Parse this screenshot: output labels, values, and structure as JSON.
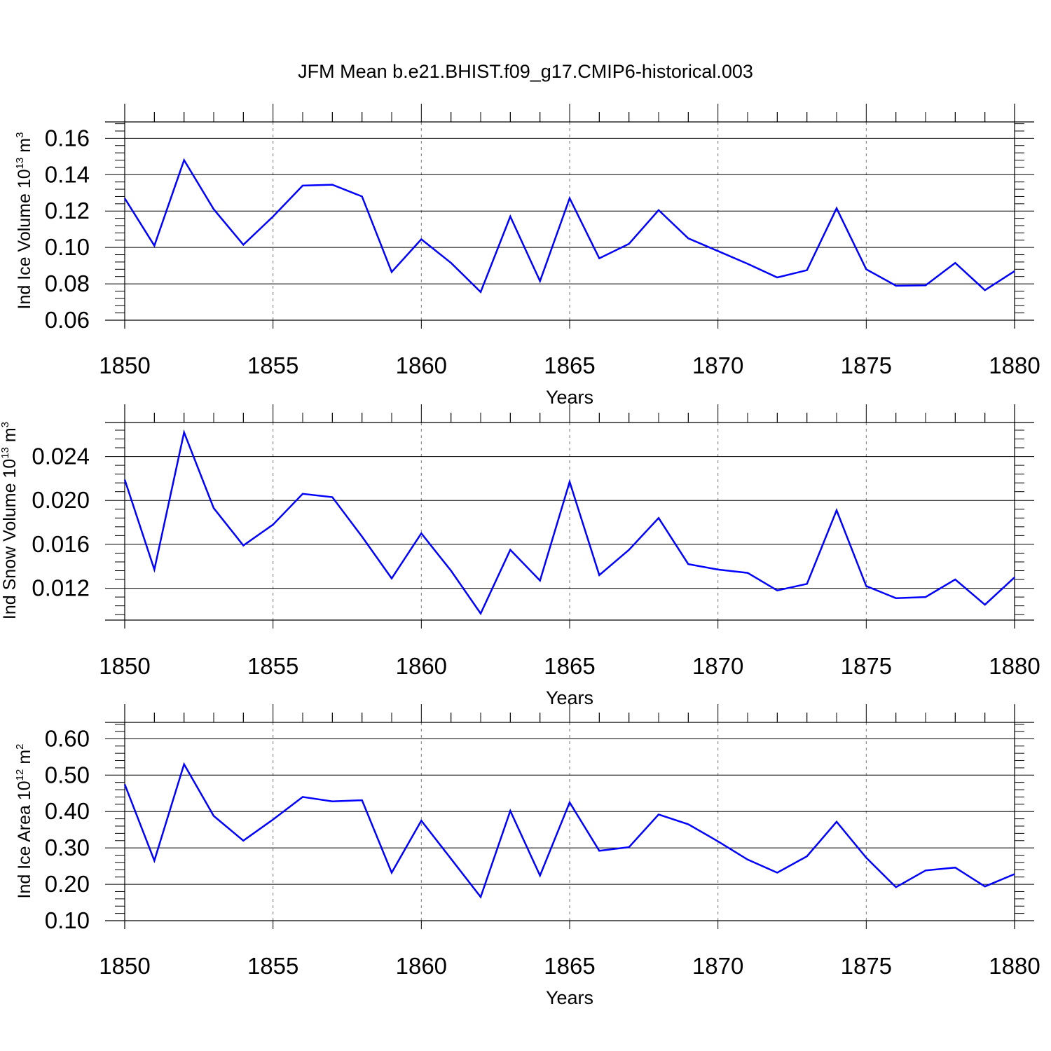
{
  "title": "JFM Mean b.e21.BHIST.f09_g17.CMIP6-historical.003",
  "line_color": "#0000ff",
  "chart_data": [
    {
      "type": "line",
      "ylabel_main": "Ind Ice Volume 10",
      "ylabel_exp": "13",
      "ylabel_unit": "m",
      "ylabel_unit_exp": "3",
      "xlabel": "Years",
      "xlim": [
        1850,
        1880
      ],
      "ylim": [
        0.06,
        0.169
      ],
      "x_ticks": [
        "1850",
        "1855",
        "1860",
        "1865",
        "1870",
        "1875",
        "1880"
      ],
      "y_ticks": [
        "0.06",
        "0.08",
        "0.10",
        "0.12",
        "0.14",
        "0.16"
      ],
      "y_tick_values": [
        0.06,
        0.08,
        0.1,
        0.12,
        0.14,
        0.16
      ],
      "grid": "dashed vertical at major x ticks",
      "x": [
        1850,
        1851,
        1852,
        1853,
        1854,
        1855,
        1856,
        1857,
        1858,
        1859,
        1860,
        1861,
        1862,
        1863,
        1864,
        1865,
        1866,
        1867,
        1868,
        1869,
        1870,
        1871,
        1872,
        1873,
        1874,
        1875,
        1876,
        1877,
        1878,
        1879,
        1880
      ],
      "values": [
        0.127,
        0.101,
        0.148,
        0.121,
        0.1015,
        0.117,
        0.134,
        0.1345,
        0.128,
        0.0865,
        0.1045,
        0.0915,
        0.0755,
        0.117,
        0.0815,
        0.127,
        0.094,
        0.102,
        0.1205,
        0.105,
        0.098,
        0.091,
        0.0835,
        0.0875,
        0.1215,
        0.088,
        0.079,
        0.0792,
        0.0915,
        0.0765,
        0.087
      ]
    },
    {
      "type": "line",
      "ylabel_main": "Ind Snow Volume 10",
      "ylabel_exp": "13",
      "ylabel_unit": "m",
      "ylabel_unit_exp": "3",
      "xlabel": "Years",
      "xlim": [
        1850,
        1880
      ],
      "ylim": [
        0.0091,
        0.0271
      ],
      "x_ticks": [
        "1850",
        "1855",
        "1860",
        "1865",
        "1870",
        "1875",
        "1880"
      ],
      "y_ticks": [
        "0.012",
        "0.016",
        "0.020",
        "0.024"
      ],
      "y_tick_values": [
        0.012,
        0.016,
        0.02,
        0.024
      ],
      "grid": "dashed vertical at major x ticks",
      "x": [
        1850,
        1851,
        1852,
        1853,
        1854,
        1855,
        1856,
        1857,
        1858,
        1859,
        1860,
        1861,
        1862,
        1863,
        1864,
        1865,
        1866,
        1867,
        1868,
        1869,
        1870,
        1871,
        1872,
        1873,
        1874,
        1875,
        1876,
        1877,
        1878,
        1879,
        1880
      ],
      "values": [
        0.0219,
        0.0137,
        0.0262,
        0.0193,
        0.0159,
        0.0178,
        0.0206,
        0.0203,
        0.0167,
        0.0129,
        0.017,
        0.0136,
        0.0097,
        0.0155,
        0.0127,
        0.0217,
        0.0132,
        0.0155,
        0.0184,
        0.0142,
        0.0137,
        0.0134,
        0.0118,
        0.0124,
        0.0191,
        0.0122,
        0.0111,
        0.0112,
        0.0128,
        0.0105,
        0.013
      ]
    },
    {
      "type": "line",
      "ylabel_main": "Ind Ice Area 10",
      "ylabel_exp": "12",
      "ylabel_unit": "m",
      "ylabel_unit_exp": "2",
      "xlabel": "Years",
      "xlim": [
        1850,
        1880
      ],
      "ylim": [
        0.1,
        0.645
      ],
      "x_ticks": [
        "1850",
        "1855",
        "1860",
        "1865",
        "1870",
        "1875",
        "1880"
      ],
      "y_ticks": [
        "0.10",
        "0.20",
        "0.30",
        "0.40",
        "0.50",
        "0.60"
      ],
      "y_tick_values": [
        0.1,
        0.2,
        0.3,
        0.4,
        0.5,
        0.6
      ],
      "grid": "dashed vertical at major x ticks",
      "x": [
        1850,
        1851,
        1852,
        1853,
        1854,
        1855,
        1856,
        1857,
        1858,
        1859,
        1860,
        1861,
        1862,
        1863,
        1864,
        1865,
        1866,
        1867,
        1868,
        1869,
        1870,
        1871,
        1872,
        1873,
        1874,
        1875,
        1876,
        1877,
        1878,
        1879,
        1880
      ],
      "values": [
        0.475,
        0.265,
        0.53,
        0.388,
        0.32,
        0.378,
        0.44,
        0.428,
        0.431,
        0.232,
        0.375,
        0.27,
        0.165,
        0.402,
        0.224,
        0.425,
        0.292,
        0.302,
        0.392,
        0.365,
        0.318,
        0.268,
        0.232,
        0.277,
        0.372,
        0.273,
        0.192,
        0.238,
        0.246,
        0.194,
        0.228
      ]
    }
  ]
}
